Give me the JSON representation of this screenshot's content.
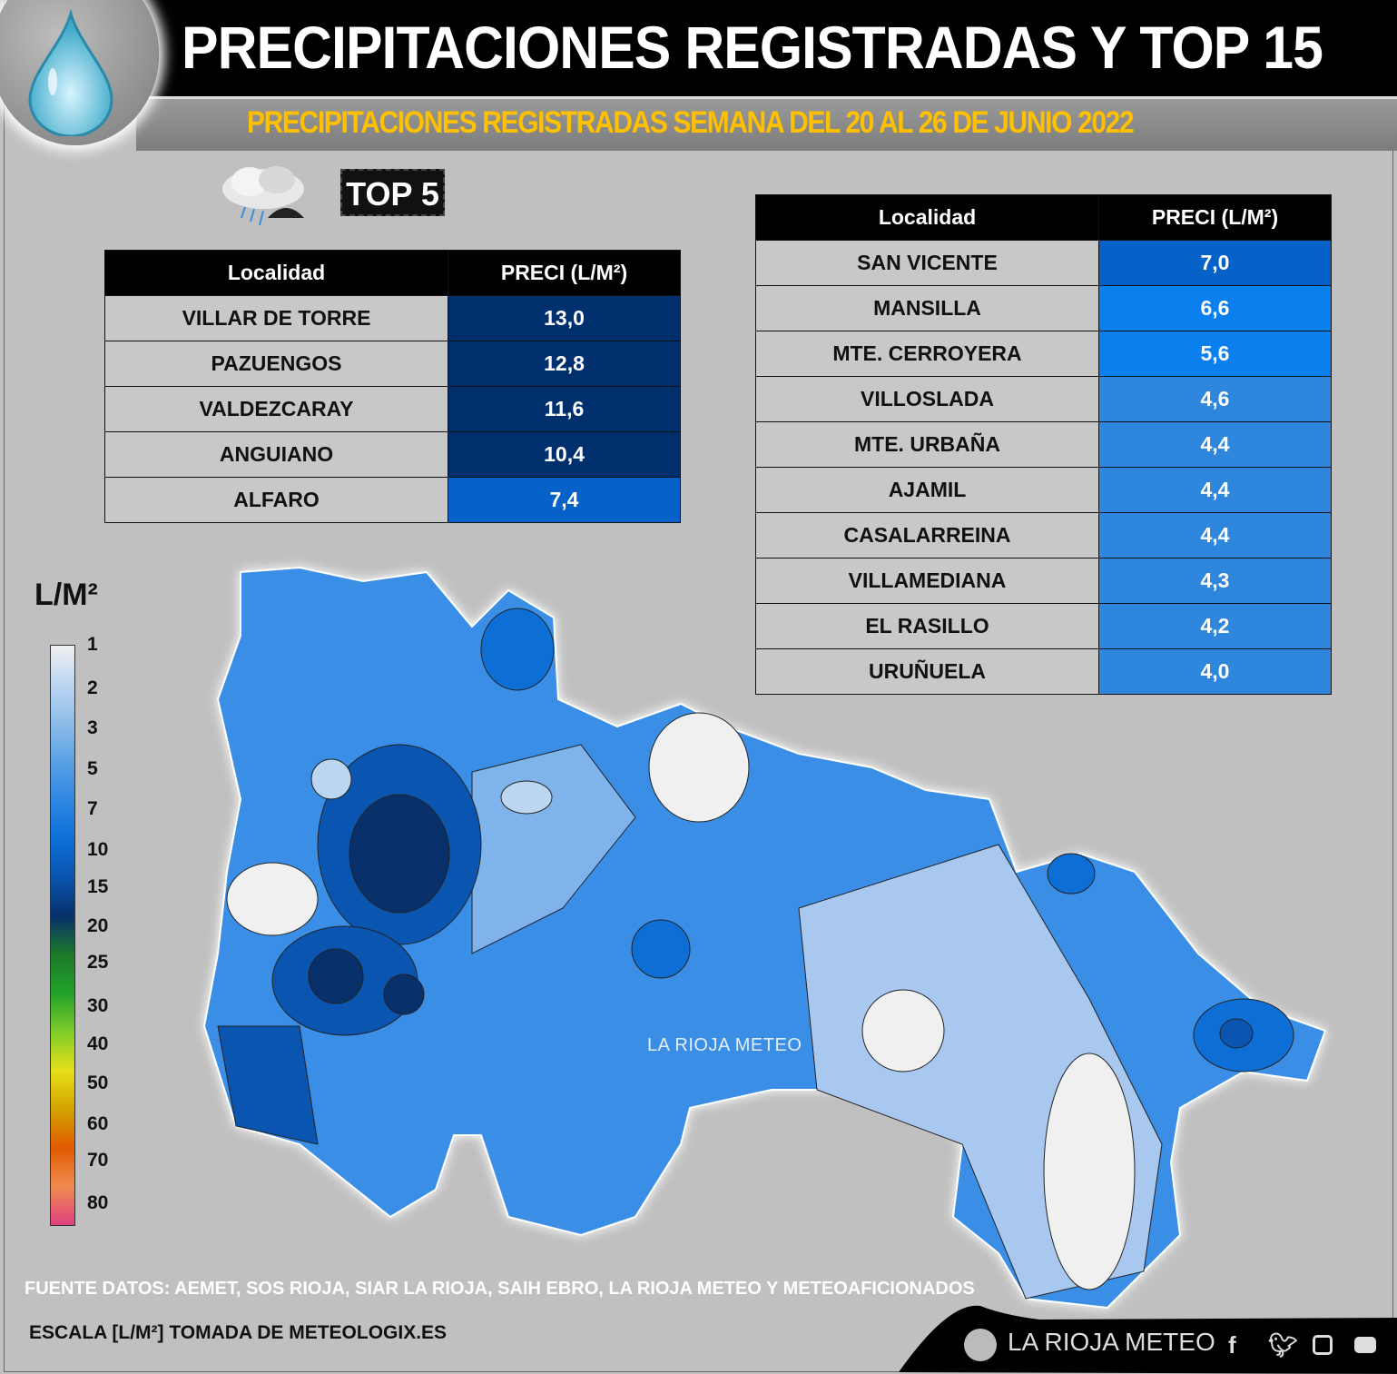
{
  "header": {
    "title": "PRECIPITACIONES REGISTRADAS Y TOP 15",
    "subtitle": "PRECIPITACIONES REGISTRADAS SEMANA DEL 20 AL 26 DE JUNIO 2022",
    "badge": "TOP 5"
  },
  "top5": {
    "headers": [
      "Localidad",
      "PRECI (L/M²)"
    ],
    "rows": [
      {
        "loc": "VILLAR DE TORRE",
        "val": "13,0",
        "color": "#002f6e"
      },
      {
        "loc": "PAZUENGOS",
        "val": "12,8",
        "color": "#002f6e"
      },
      {
        "loc": "VALDEZCARAY",
        "val": "11,6",
        "color": "#002f6e"
      },
      {
        "loc": "ANGUIANO",
        "val": "10,4",
        "color": "#002f6e"
      },
      {
        "loc": "ALFARO",
        "val": "7,4",
        "color": "#0662c8"
      }
    ]
  },
  "top15": {
    "headers": [
      "Localidad",
      "PRECI (L/M²)"
    ],
    "rows": [
      {
        "loc": "SAN VICENTE",
        "val": "7,0",
        "color": "#0662c8"
      },
      {
        "loc": "MANSILLA",
        "val": "6,6",
        "color": "#0a80ee"
      },
      {
        "loc": "MTE. CERROYERA",
        "val": "5,6",
        "color": "#0a80ee"
      },
      {
        "loc": "VILLOSLADA",
        "val": "4,6",
        "color": "#2f87dd"
      },
      {
        "loc": "MTE. URBAÑA",
        "val": "4,4",
        "color": "#2f87dd"
      },
      {
        "loc": "AJAMIL",
        "val": "4,4",
        "color": "#2f87dd"
      },
      {
        "loc": "CASALARREINA",
        "val": "4,4",
        "color": "#2f87dd"
      },
      {
        "loc": "VILLAMEDIANA",
        "val": "4,3",
        "color": "#2f87dd"
      },
      {
        "loc": "EL RASILLO",
        "val": "4,2",
        "color": "#2f87dd"
      },
      {
        "loc": "URUÑUELA",
        "val": "4,0",
        "color": "#2f87dd"
      }
    ]
  },
  "legend": {
    "title": "L/M²",
    "labels": [
      "1",
      "2",
      "3",
      "5",
      "7",
      "10",
      "15",
      "20",
      "25",
      "30",
      "40",
      "50",
      "60",
      "70",
      "80"
    ],
    "colors": [
      "#f0f0f0",
      "#bcd6f2",
      "#8ebde9",
      "#5aa0e4",
      "#2e87e3",
      "#0d6fd6",
      "#0a55b0",
      "#08306b",
      "#1d7a2a",
      "#22a22a",
      "#7fcc2a",
      "#e6e01a",
      "#d4a300",
      "#e05a00",
      "#f08c50",
      "#e04080"
    ]
  },
  "map": {
    "watermark": "LA RIOJA METEO"
  },
  "footer": {
    "source": "FUENTE DATOS: AEMET, SOS RIOJA, SIAR LA RIOJA, SAIH EBRO, LA RIOJA METEO  Y METEOAFICIONADOS",
    "scale": "ESCALA [L/M²] TOMADA DE METEOLOGIX.ES",
    "brand": "LA RIOJA METEO"
  }
}
